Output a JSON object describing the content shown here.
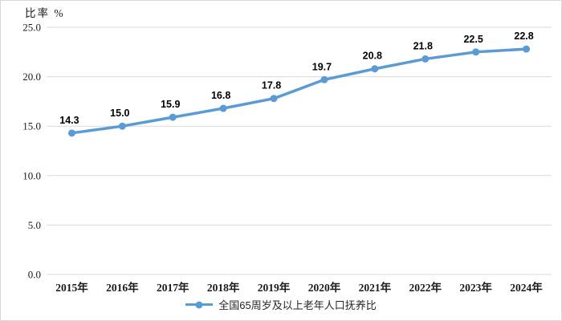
{
  "chart_data": {
    "type": "line",
    "title": "",
    "ylabel": "比率 %",
    "xlabel": "",
    "categories": [
      "2015年",
      "2016年",
      "2017年",
      "2018年",
      "2019年",
      "2020年",
      "2021年",
      "2022年",
      "2023年",
      "2024年"
    ],
    "series": [
      {
        "name": "全国65周岁及以上老年人口抚养比",
        "values": [
          14.3,
          15.0,
          15.9,
          16.8,
          17.8,
          19.7,
          20.8,
          21.8,
          22.5,
          22.8
        ],
        "point_labels": [
          "14.3",
          "15.0",
          "15.9",
          "16.8",
          "17.8",
          "19.7",
          "20.8",
          "21.8",
          "22.5",
          "22.8"
        ]
      }
    ],
    "ylim": [
      0,
      25
    ],
    "yticks": [
      0,
      5,
      10,
      15,
      20,
      25
    ],
    "ytick_labels": [
      "0.0",
      "5.0",
      "10.0",
      "15.0",
      "20.0",
      "25.0"
    ],
    "grid": true,
    "legend_position": "bottom-center",
    "colors": {
      "line": "#5B9BD5",
      "marker": "#5B9BD5",
      "gridline": "#D9D9D9",
      "tick_text": "#1a1a1a",
      "point_label_text": "#000000",
      "background": "#ffffff",
      "frame_border": "#d4d9de"
    }
  }
}
